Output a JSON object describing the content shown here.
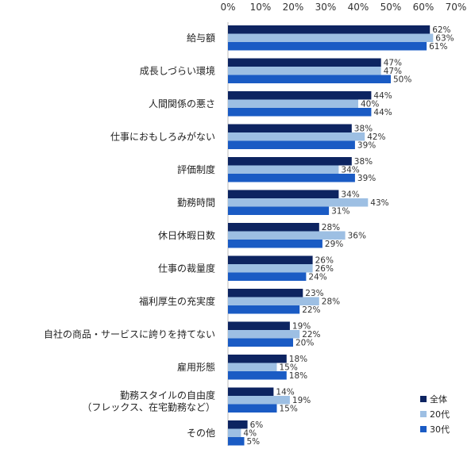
{
  "chart_data": {
    "type": "bar",
    "orientation": "horizontal",
    "title": "",
    "xlabel": "",
    "ylabel": "",
    "xlim": [
      0,
      70
    ],
    "x_ticks": [
      "0%",
      "10%",
      "20%",
      "30%",
      "40%",
      "50%",
      "60%",
      "70%"
    ],
    "x_axis_position": "top",
    "grid": false,
    "legend_position": "bottom-right",
    "categories": [
      "給与額",
      "成長しづらい環境",
      "人間関係の悪さ",
      "仕事におもしろみがない",
      "評価制度",
      "勤務時間",
      "休日休暇日数",
      "仕事の裁量度",
      "福利厚生の充実度",
      "自社の商品・サービスに誇りを持てない",
      "雇用形態",
      "勤務スタイルの自由度|（フレックス、在宅勤務など）",
      "その他"
    ],
    "series": [
      {
        "name": "全体",
        "color": "#0d2461",
        "values": [
          62,
          47,
          44,
          38,
          38,
          34,
          28,
          26,
          23,
          19,
          18,
          14,
          6
        ]
      },
      {
        "name": "20代",
        "color": "#9dbfe3",
        "values": [
          63,
          47,
          40,
          42,
          34,
          43,
          36,
          26,
          28,
          22,
          15,
          19,
          4
        ]
      },
      {
        "name": "30代",
        "color": "#1a5bc4",
        "values": [
          61,
          50,
          44,
          39,
          39,
          31,
          29,
          24,
          22,
          20,
          18,
          15,
          5
        ]
      }
    ],
    "value_suffix": "%"
  }
}
